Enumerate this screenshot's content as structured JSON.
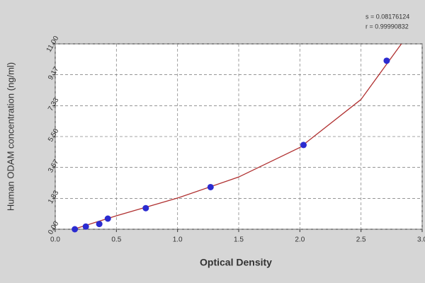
{
  "chart_data": {
    "type": "scatter",
    "x_label": "Optical Density",
    "y_label": "Human ODAM  concentration (ng/ml)",
    "annotations": [
      "s = 0.08176124",
      "r = 0.99990832"
    ],
    "xlim": [
      0,
      3
    ],
    "ylim": [
      0,
      11
    ],
    "xticks": [
      {
        "value": 0,
        "label": "0.0"
      },
      0.5,
      {
        "value": 1,
        "label": "1.0"
      },
      1.5,
      {
        "value": 2,
        "label": "2.0"
      },
      2.5,
      {
        "value": 3,
        "label": "3.0"
      }
    ],
    "yticks": [
      {
        "value": 0,
        "label": "0.00"
      },
      1.83,
      3.67,
      {
        "value": 5.5,
        "label": "5.50"
      },
      7.33,
      9.17,
      {
        "value": 11,
        "label": "11.00"
      }
    ],
    "grid": true,
    "series": [
      {
        "kind": "points",
        "color": "#2b2bd0",
        "x": [
          0.16,
          0.25,
          0.36,
          0.43,
          0.74,
          1.27,
          2.03,
          2.71
        ],
        "values": [
          0.0,
          0.16,
          0.31,
          0.63,
          1.25,
          2.5,
          5,
          10
        ]
      },
      {
        "kind": "curve",
        "color": "#b03030",
        "x": [
          0.15,
          0.5,
          1.0,
          1.5,
          2.0,
          2.5,
          2.83
        ],
        "values": [
          0.0,
          0.8,
          1.85,
          3.1,
          4.85,
          7.7,
          11
        ]
      }
    ]
  }
}
